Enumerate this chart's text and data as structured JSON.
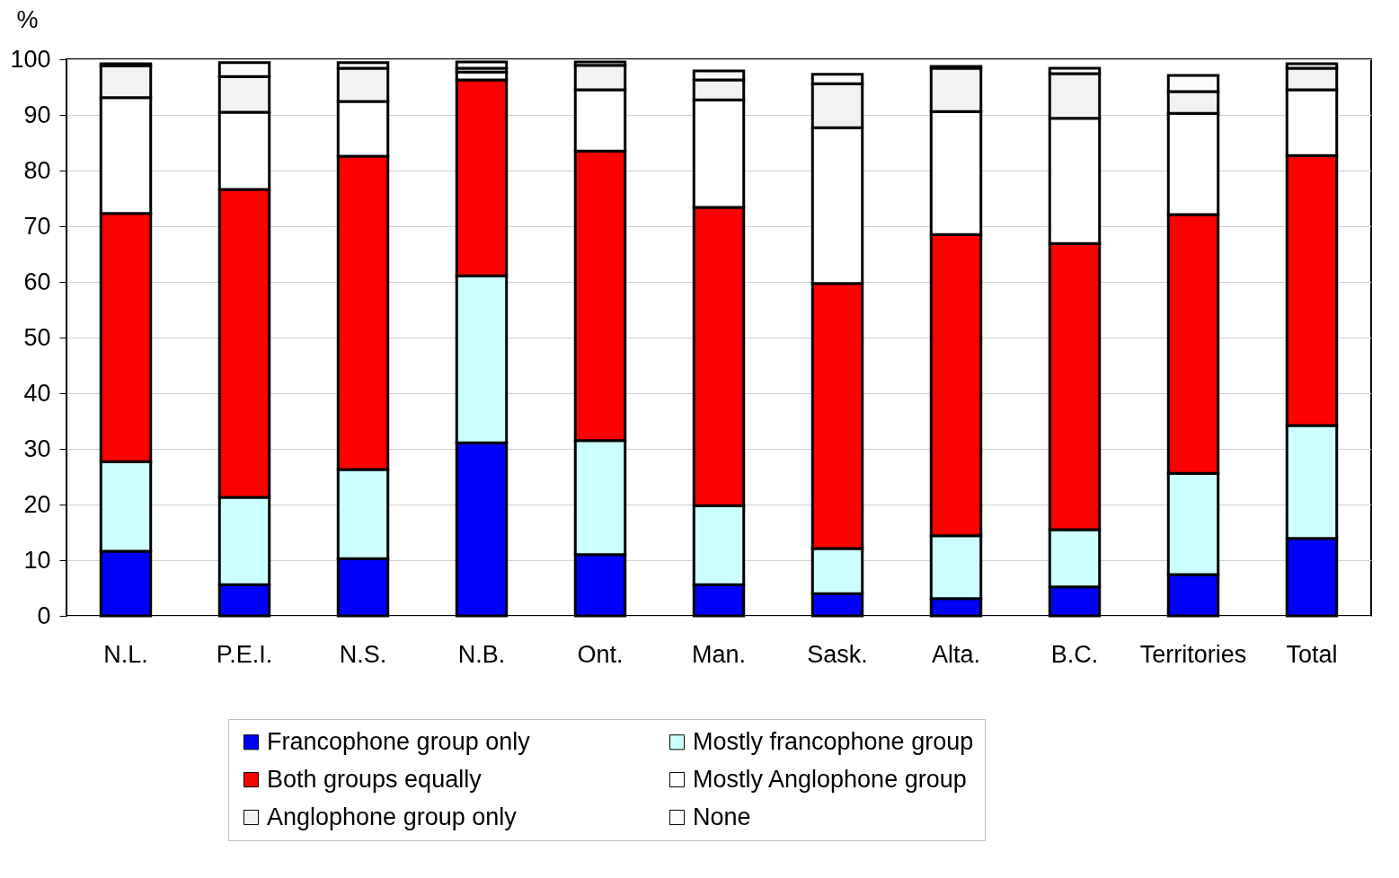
{
  "chart_data": {
    "type": "bar",
    "stacked": true,
    "ylabel": "%",
    "ylim": [
      0,
      100
    ],
    "yticks": [
      0,
      10,
      20,
      30,
      40,
      50,
      60,
      70,
      80,
      90,
      100
    ],
    "grid": "y",
    "legend": "bottom",
    "categories": [
      "N.L.",
      "P.E.I.",
      "N.S.",
      "N.B.",
      "Ont.",
      "Man.",
      "Sask.",
      "Alta.",
      "B.C.",
      "Territories",
      "Total"
    ],
    "series": [
      {
        "name": "Francophone group only",
        "color": "#0000ff",
        "values": [
          11.6,
          5.6,
          10.3,
          31.1,
          11.0,
          5.6,
          4.0,
          3.1,
          5.2,
          7.4,
          13.9
        ]
      },
      {
        "name": "Mostly francophone group",
        "color": "#ccffff",
        "values": [
          16.1,
          15.7,
          16.0,
          30.0,
          20.5,
          14.2,
          8.1,
          11.3,
          10.3,
          18.2,
          20.3
        ]
      },
      {
        "name": "Both groups equally",
        "color": "#ff0000",
        "values": [
          44.6,
          55.3,
          56.3,
          35.2,
          52.0,
          53.6,
          47.6,
          54.1,
          51.4,
          46.5,
          48.5
        ]
      },
      {
        "name": "Mostly Anglophone group",
        "color": "#ffffff",
        "values": [
          20.8,
          13.9,
          9.8,
          1.4,
          11.0,
          19.3,
          28.0,
          22.1,
          22.5,
          18.2,
          11.8
        ]
      },
      {
        "name": "Anglophone group only",
        "color": "#f2f2f2",
        "values": [
          5.7,
          6.4,
          6.0,
          0.7,
          4.4,
          3.6,
          7.9,
          7.8,
          8.0,
          3.9,
          3.9
        ]
      },
      {
        "name": "None",
        "color": "#fafafa",
        "values": [
          0.4,
          2.5,
          1.0,
          1.1,
          0.6,
          1.6,
          1.7,
          0.3,
          1.0,
          2.9,
          0.8
        ]
      }
    ]
  }
}
